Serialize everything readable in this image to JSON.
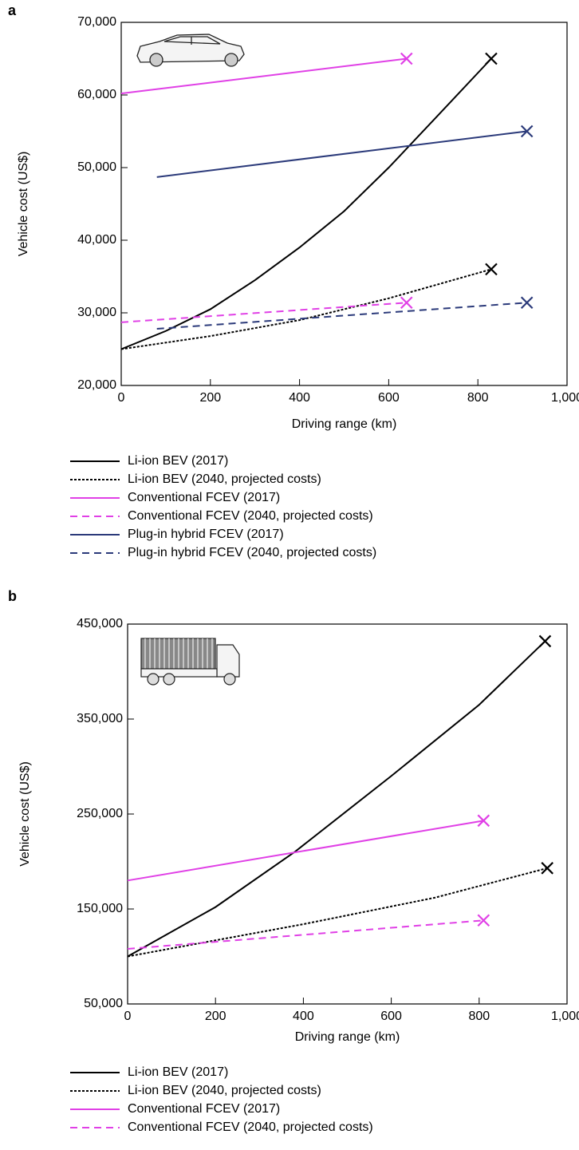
{
  "chart_data": [
    {
      "type": "line",
      "panel": "a",
      "x_label": "Driving range (km)",
      "y_label": "Vehicle cost (US$)",
      "xlim": [
        0,
        1000
      ],
      "ylim": [
        20000,
        70000
      ],
      "xticks": [
        0,
        200,
        400,
        600,
        800,
        {
          "value": 1000,
          "label": "1,000"
        }
      ],
      "yticks": [
        {
          "value": 20000,
          "label": "20,000"
        },
        {
          "value": 30000,
          "label": "30,000"
        },
        {
          "value": 40000,
          "label": "40,000"
        },
        {
          "value": 50000,
          "label": "50,000"
        },
        {
          "value": 60000,
          "label": "60,000"
        },
        {
          "value": 70000,
          "label": "70,000"
        }
      ],
      "series": [
        {
          "name": "Li-ion BEV (2017)",
          "color": "#000000",
          "style": "solid",
          "x": [
            0,
            100,
            200,
            300,
            400,
            500,
            600,
            700,
            830
          ],
          "values": [
            25000,
            27500,
            30500,
            34500,
            39000,
            44000,
            50000,
            56500,
            65000
          ]
        },
        {
          "name": "Li-ion BEV (2040, projected costs)",
          "color": "#000000",
          "style": "dotted",
          "x": [
            0,
            200,
            400,
            600,
            830
          ],
          "values": [
            25000,
            26800,
            29000,
            32000,
            36000
          ]
        },
        {
          "name": "Conventional FCEV (2017)",
          "color": "#e040e6",
          "style": "solid",
          "x": [
            0,
            640
          ],
          "values": [
            60200,
            65000
          ]
        },
        {
          "name": "Conventional FCEV (2040, projected costs)",
          "color": "#e040e6",
          "style": "dashed",
          "x": [
            0,
            640
          ],
          "values": [
            28700,
            31400
          ]
        },
        {
          "name": "Plug-in hybrid FCEV (2017)",
          "color": "#2b3a7a",
          "style": "solid",
          "x": [
            80,
            910
          ],
          "values": [
            48700,
            55000
          ]
        },
        {
          "name": "Plug-in hybrid FCEV (2040, projected costs)",
          "color": "#2b3a7a",
          "style": "dashed",
          "x": [
            80,
            910
          ],
          "values": [
            27800,
            31400
          ]
        }
      ]
    },
    {
      "type": "line",
      "panel": "b",
      "x_label": "Driving range (km)",
      "y_label": "Vehicle cost (US$)",
      "xlim": [
        0,
        1000
      ],
      "ylim": [
        50000,
        450000
      ],
      "xticks": [
        0,
        200,
        400,
        600,
        800,
        {
          "value": 1000,
          "label": "1,000"
        }
      ],
      "yticks": [
        {
          "value": 50000,
          "label": "50,000"
        },
        {
          "value": 150000,
          "label": "150,000"
        },
        {
          "value": 250000,
          "label": "250,000"
        },
        {
          "value": 350000,
          "label": "350,000"
        },
        {
          "value": 450000,
          "label": "450,000"
        }
      ],
      "series": [
        {
          "name": "Li-ion BEV (2017)",
          "color": "#000000",
          "style": "solid",
          "x": [
            0,
            200,
            380,
            600,
            800,
            950
          ],
          "values": [
            100000,
            152000,
            210000,
            290000,
            365000,
            432000
          ]
        },
        {
          "name": "Li-ion BEV (2040, projected costs)",
          "color": "#000000",
          "style": "dotted",
          "x": [
            0,
            400,
            700,
            955
          ],
          "values": [
            100000,
            134000,
            162000,
            193000
          ]
        },
        {
          "name": "Conventional FCEV (2017)",
          "color": "#e040e6",
          "style": "solid",
          "x": [
            0,
            810
          ],
          "values": [
            180000,
            243000
          ]
        },
        {
          "name": "Conventional FCEV (2040, projected costs)",
          "color": "#e040e6",
          "style": "dashed",
          "x": [
            0,
            810
          ],
          "values": [
            108000,
            138000
          ]
        }
      ]
    }
  ]
}
